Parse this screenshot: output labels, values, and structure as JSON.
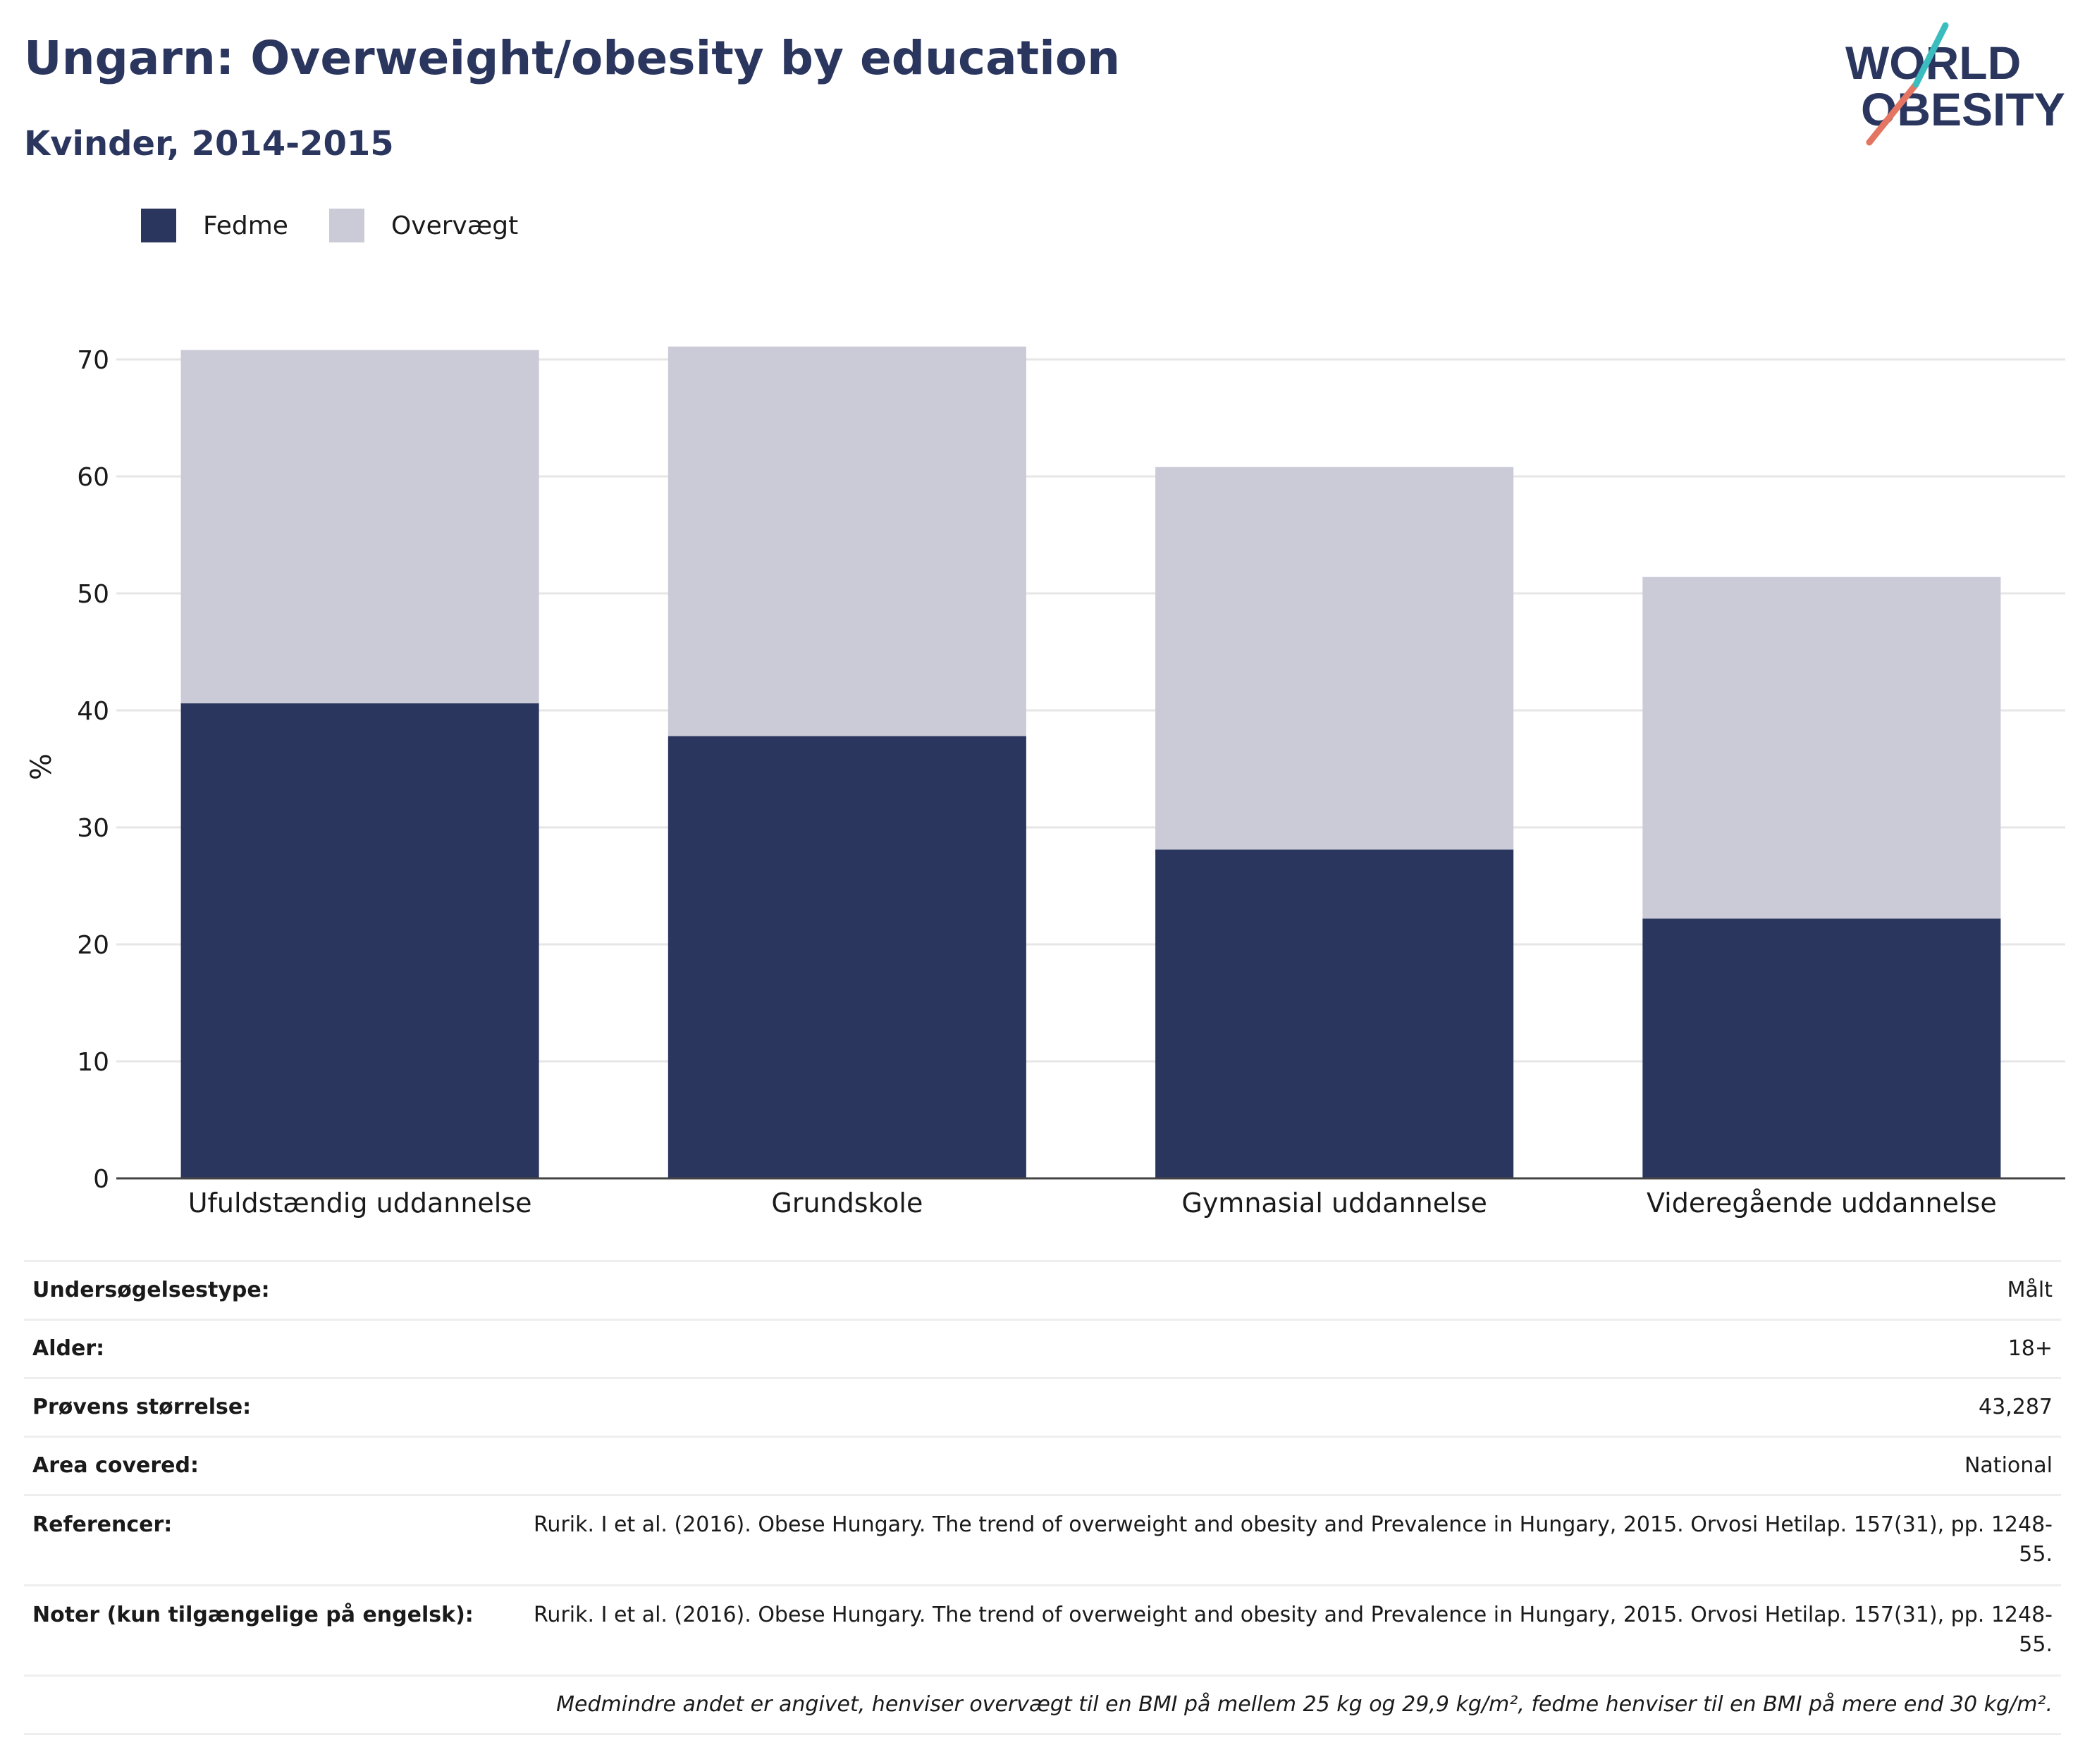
{
  "header": {
    "title": "Ungarn: Overweight/obesity by education",
    "subtitle": "Kvinder, 2014-2015"
  },
  "logo": {
    "line1": "WORLD",
    "line2": "OBESITY"
  },
  "colors": {
    "fedme": "#2b365f",
    "overvaegt": "#cacbd7",
    "text": "#2b365f",
    "grid": "#e6e6e6"
  },
  "chart_data": {
    "type": "bar",
    "stacked": true,
    "categories": [
      "Ufuldstændig uddannelse",
      "Grundskole",
      "Gymnasial uddannelse",
      "Videregående uddannelse"
    ],
    "series": [
      {
        "name": "Fedme",
        "values": [
          40.6,
          37.8,
          28.1,
          22.2
        ]
      },
      {
        "name": "Overvægt",
        "values": [
          30.2,
          33.3,
          32.7,
          29.2
        ]
      }
    ],
    "ylabel": "%",
    "ylim": [
      0,
      70
    ],
    "yticks": [
      0,
      10,
      20,
      30,
      40,
      50,
      60,
      70
    ],
    "grid": true,
    "legend_position": "top-left"
  },
  "info": {
    "rows": [
      {
        "key": "Undersøgelsestype:",
        "value": "Målt"
      },
      {
        "key": "Alder:",
        "value": "18+"
      },
      {
        "key": "Prøvens størrelse:",
        "value": "43,287"
      },
      {
        "key": "Area covered:",
        "value": "National"
      },
      {
        "key": "Referencer:",
        "value": "Rurik. I et al. (2016). Obese Hungary. The trend of overweight and obesity and Prevalence in Hungary, 2015. Orvosi Hetilap. 157(31), pp. 1248-55."
      },
      {
        "key": "Noter (kun tilgængelige på engelsk):",
        "value": "Rurik. I et al. (2016). Obese Hungary. The trend of overweight and obesity and Prevalence in Hungary, 2015. Orvosi Hetilap. 157(31), pp. 1248-55."
      }
    ],
    "footnote": "Medmindre andet er angivet, henviser overvægt til en BMI på mellem 25 kg og 29,9 kg/m², fedme henviser til en BMI på mere end 30 kg/m²."
  }
}
